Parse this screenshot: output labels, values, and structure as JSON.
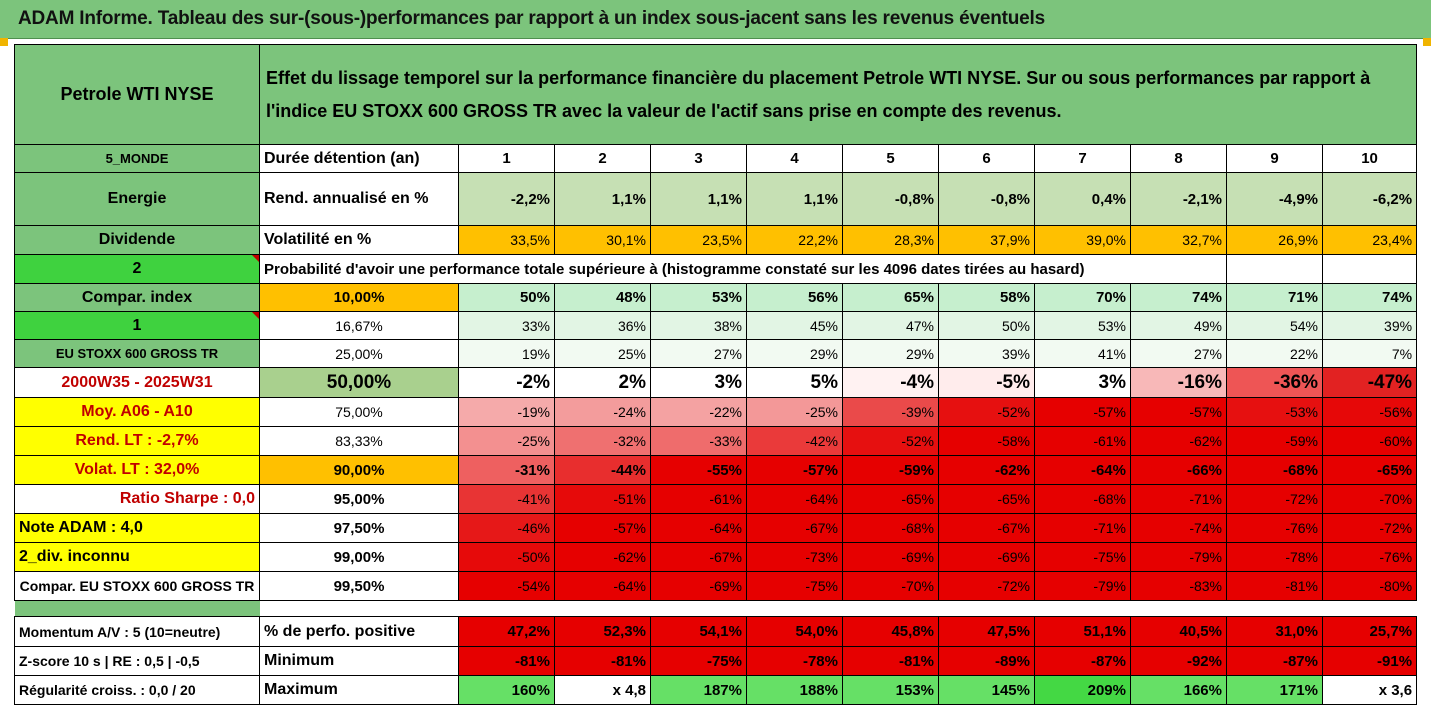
{
  "title": "ADAM Informe. Tableau des sur-(sous-)performances par rapport à un index sous-jacent sans les revenus éventuels",
  "asset_name": "Petrole WTI NYSE",
  "description": "Effet du lissage temporel sur la performance financière du placement Petrole WTI NYSE. Sur ou sous performances par rapport à l'indice EU STOXX 600 GROSS TR avec la valeur de l'actif sans prise en compte des revenus.",
  "left_labels": {
    "zone": "5_MONDE",
    "sector": "Energie",
    "dividend": "Dividende",
    "div_code": "2",
    "compar_index": "Compar. index",
    "compar_code": "1",
    "index_name": "EU STOXX 600 GROSS TR",
    "period": "2000W35 - 2025W31",
    "moy": "Moy. A06 - A10",
    "rend_lt": "Rend. LT :   -2,7%",
    "volat_lt": "Volat. LT :   32,0%",
    "sharpe": "Ratio Sharpe :   0,0",
    "note": "Note ADAM : 4,0",
    "div_unknown": "2_div. inconnu",
    "compar_full": "Compar. EU STOXX 600 GROSS TR"
  },
  "metrics": {
    "duration_label": "Durée détention (an)",
    "rend_label": "Rend. annualisé en %",
    "vol_label": "Volatilité en %",
    "prob_label": "Probabilité d'avoir une performance totale supérieure à (histogramme constaté sur les 4096 dates tirées au hasard)",
    "pos_label": "% de perfo. positive",
    "min_label": "Minimum",
    "max_label": "Maximum"
  },
  "horizons": [
    "1",
    "2",
    "3",
    "4",
    "5",
    "6",
    "7",
    "8",
    "9",
    "10"
  ],
  "rend": [
    "-2,2%",
    "1,1%",
    "1,1%",
    "1,1%",
    "-0,8%",
    "-0,8%",
    "0,4%",
    "-2,1%",
    "-4,9%",
    "-6,2%"
  ],
  "vol": [
    "33,5%",
    "30,1%",
    "23,5%",
    "22,2%",
    "28,3%",
    "37,9%",
    "39,0%",
    "32,7%",
    "26,9%",
    "23,4%"
  ],
  "prob_rows": [
    {
      "p": "10,00%",
      "v": [
        "50%",
        "48%",
        "53%",
        "56%",
        "65%",
        "58%",
        "70%",
        "74%",
        "71%",
        "74%"
      ]
    },
    {
      "p": "16,67%",
      "v": [
        "33%",
        "36%",
        "38%",
        "45%",
        "47%",
        "50%",
        "53%",
        "49%",
        "54%",
        "39%"
      ]
    },
    {
      "p": "25,00%",
      "v": [
        "19%",
        "25%",
        "27%",
        "29%",
        "29%",
        "39%",
        "41%",
        "27%",
        "22%",
        "7%"
      ]
    },
    {
      "p": "50,00%",
      "v": [
        "-2%",
        "2%",
        "3%",
        "5%",
        "-4%",
        "-5%",
        "3%",
        "-16%",
        "-36%",
        "-47%"
      ]
    },
    {
      "p": "75,00%",
      "v": [
        "-19%",
        "-24%",
        "-22%",
        "-25%",
        "-39%",
        "-52%",
        "-57%",
        "-57%",
        "-53%",
        "-56%"
      ]
    },
    {
      "p": "83,33%",
      "v": [
        "-25%",
        "-32%",
        "-33%",
        "-42%",
        "-52%",
        "-58%",
        "-61%",
        "-62%",
        "-59%",
        "-60%"
      ]
    },
    {
      "p": "90,00%",
      "v": [
        "-31%",
        "-44%",
        "-55%",
        "-57%",
        "-59%",
        "-62%",
        "-64%",
        "-66%",
        "-68%",
        "-65%"
      ]
    },
    {
      "p": "95,00%",
      "v": [
        "-41%",
        "-51%",
        "-61%",
        "-64%",
        "-65%",
        "-65%",
        "-68%",
        "-71%",
        "-72%",
        "-70%"
      ]
    },
    {
      "p": "97,50%",
      "v": [
        "-46%",
        "-57%",
        "-64%",
        "-67%",
        "-68%",
        "-67%",
        "-71%",
        "-74%",
        "-76%",
        "-72%"
      ]
    },
    {
      "p": "99,00%",
      "v": [
        "-50%",
        "-62%",
        "-67%",
        "-73%",
        "-69%",
        "-69%",
        "-75%",
        "-79%",
        "-78%",
        "-76%"
      ]
    },
    {
      "p": "99,50%",
      "v": [
        "-54%",
        "-64%",
        "-69%",
        "-75%",
        "-70%",
        "-72%",
        "-79%",
        "-83%",
        "-81%",
        "-80%"
      ]
    }
  ],
  "stats": {
    "momentum": "Momentum A/V : 5 (10=neutre)",
    "zscore": "Z-score 10 s  |  RE : 0,5  |  -0,5",
    "regularite": "Régularité croiss. : 0,0 / 20",
    "pos": [
      "47,2%",
      "52,3%",
      "54,1%",
      "54,0%",
      "45,8%",
      "47,5%",
      "51,1%",
      "40,5%",
      "31,0%",
      "25,7%"
    ],
    "min": [
      "-81%",
      "-81%",
      "-75%",
      "-78%",
      "-81%",
      "-89%",
      "-87%",
      "-92%",
      "-87%",
      "-91%"
    ],
    "max": [
      "160%",
      "x 4,8",
      "187%",
      "188%",
      "153%",
      "145%",
      "209%",
      "166%",
      "171%",
      "x 3,6"
    ]
  },
  "colors": {
    "header_green": "#7cc47c",
    "bright_green": "#3fd23f",
    "orange": "#ffc000",
    "yellow": "#ffff00",
    "red": "#ff0000"
  }
}
